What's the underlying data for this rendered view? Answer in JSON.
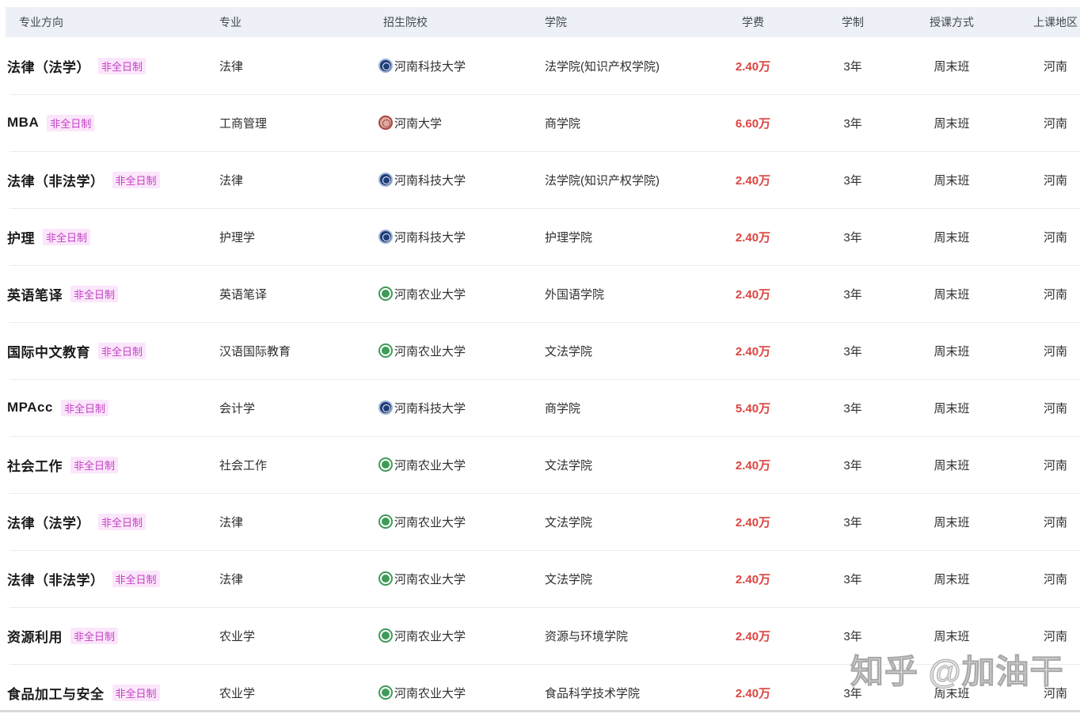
{
  "table": {
    "columns": [
      "专业方向",
      "专业",
      "招生院校",
      "学院",
      "学费",
      "学制",
      "授课方式",
      "上课地区"
    ],
    "rows": [
      {
        "direction": "法律（法学）",
        "badge": "非全日制",
        "major": "法律",
        "school": "河南科技大学",
        "logo_class": "uni-logo haust",
        "college": "法学院(知识产权学院)",
        "tuition": "2.40万",
        "duration": "3年",
        "mode": "周末班",
        "region": "河南"
      },
      {
        "direction": "MBA",
        "badge": "非全日制",
        "major": "工商管理",
        "school": "河南大学",
        "logo_class": "uni-logo henu",
        "college": "商学院",
        "tuition": "6.60万",
        "duration": "3年",
        "mode": "周末班",
        "region": "河南"
      },
      {
        "direction": "法律（非法学）",
        "badge": "非全日制",
        "major": "法律",
        "school": "河南科技大学",
        "logo_class": "uni-logo haust",
        "college": "法学院(知识产权学院)",
        "tuition": "2.40万",
        "duration": "3年",
        "mode": "周末班",
        "region": "河南"
      },
      {
        "direction": "护理",
        "badge": "非全日制",
        "major": "护理学",
        "school": "河南科技大学",
        "logo_class": "uni-logo haust",
        "college": "护理学院",
        "tuition": "2.40万",
        "duration": "3年",
        "mode": "周末班",
        "region": "河南"
      },
      {
        "direction": "英语笔译",
        "badge": "非全日制",
        "major": "英语笔译",
        "school": "河南农业大学",
        "logo_class": "uni-logo henau",
        "college": "外国语学院",
        "tuition": "2.40万",
        "duration": "3年",
        "mode": "周末班",
        "region": "河南"
      },
      {
        "direction": "国际中文教育",
        "badge": "非全日制",
        "major": "汉语国际教育",
        "school": "河南农业大学",
        "logo_class": "uni-logo henau",
        "college": "文法学院",
        "tuition": "2.40万",
        "duration": "3年",
        "mode": "周末班",
        "region": "河南"
      },
      {
        "direction": "MPAcc",
        "badge": "非全日制",
        "major": "会计学",
        "school": "河南科技大学",
        "logo_class": "uni-logo haust",
        "college": "商学院",
        "tuition": "5.40万",
        "duration": "3年",
        "mode": "周末班",
        "region": "河南"
      },
      {
        "direction": "社会工作",
        "badge": "非全日制",
        "major": "社会工作",
        "school": "河南农业大学",
        "logo_class": "uni-logo henau",
        "college": "文法学院",
        "tuition": "2.40万",
        "duration": "3年",
        "mode": "周末班",
        "region": "河南"
      },
      {
        "direction": "法律（法学）",
        "badge": "非全日制",
        "major": "法律",
        "school": "河南农业大学",
        "logo_class": "uni-logo henau",
        "college": "文法学院",
        "tuition": "2.40万",
        "duration": "3年",
        "mode": "周末班",
        "region": "河南"
      },
      {
        "direction": "法律（非法学）",
        "badge": "非全日制",
        "major": "法律",
        "school": "河南农业大学",
        "logo_class": "uni-logo henau",
        "college": "文法学院",
        "tuition": "2.40万",
        "duration": "3年",
        "mode": "周末班",
        "region": "河南"
      },
      {
        "direction": "资源利用",
        "badge": "非全日制",
        "major": "农业学",
        "school": "河南农业大学",
        "logo_class": "uni-logo henau",
        "college": "资源与环境学院",
        "tuition": "2.40万",
        "duration": "3年",
        "mode": "周末班",
        "region": "河南"
      },
      {
        "direction": "食品加工与安全",
        "badge": "非全日制",
        "major": "农业学",
        "school": "河南农业大学",
        "logo_class": "uni-logo henau",
        "college": "食品科学技术学院",
        "tuition": "2.40万",
        "duration": "3年",
        "mode": "周末班",
        "region": "河南"
      }
    ]
  },
  "watermark": {
    "text": "知乎 @加油干"
  },
  "colors": {
    "header_bg": "#edf1f7",
    "badge_text": "#c340c3",
    "badge_bg": "#fbe6fb",
    "tuition_red": "#dc443f",
    "row_divider": "#ececec",
    "haust_logo_ring": "#9db3d6",
    "haust_logo_fill": "#1f3e78",
    "henu_logo_ring": "#a6453b",
    "henu_logo_fill": "#ddaaa2",
    "henau_logo_ring": "#3f9b58",
    "henau_logo_fill": "#ffffff",
    "watermark_gray": "#a9a9a9"
  }
}
